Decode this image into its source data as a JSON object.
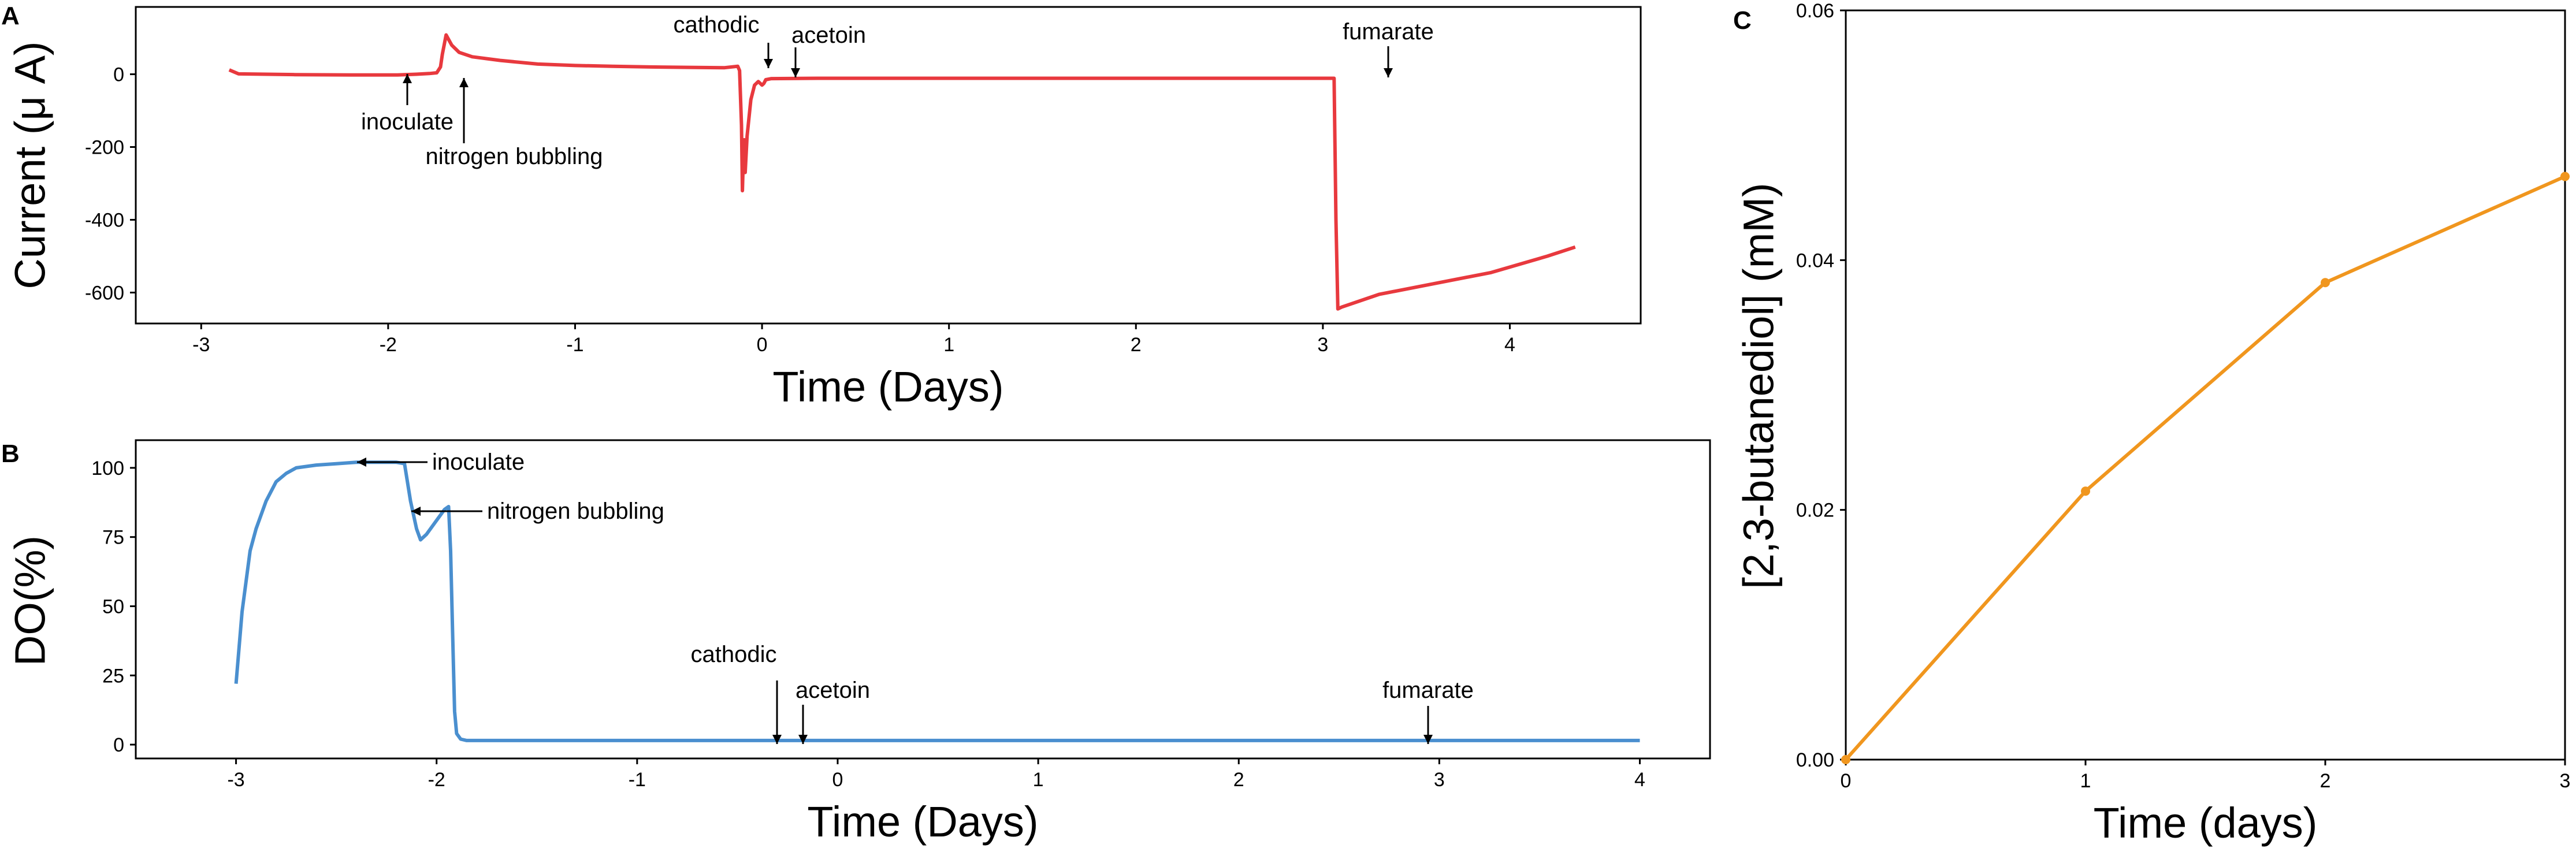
{
  "chart_data": [
    {
      "panel": "A",
      "type": "line",
      "xlabel": "Time (Days)",
      "ylabel": "Current (μ A)",
      "xlim": [
        -3.35,
        4.7
      ],
      "ylim": [
        -685,
        185
      ],
      "xticks": [
        -3,
        -2,
        -1,
        0,
        1,
        2,
        3,
        4
      ],
      "yticks": [
        0,
        -200,
        -400,
        -600
      ],
      "grid": false,
      "color": "#e8393e",
      "series": [
        {
          "x": [
            -2.85,
            -2.8,
            -2.5,
            -2.2,
            -1.95,
            -1.85,
            -1.78,
            -1.74,
            -1.72,
            -1.71,
            -1.69,
            -1.66,
            -1.62,
            -1.55,
            -1.4,
            -1.2,
            -1.0,
            -0.8,
            -0.6,
            -0.4,
            -0.2,
            -0.13,
            -0.12,
            -0.11,
            -0.105,
            -0.1,
            -0.095,
            -0.09,
            -0.08,
            -0.06,
            -0.04,
            -0.02,
            0.0,
            0.01,
            0.02,
            0.05,
            0.3,
            1.0,
            2.0,
            3.0,
            3.06,
            3.07,
            3.08,
            3.1,
            3.3,
            3.6,
            3.9,
            4.2,
            4.35
          ],
          "y": [
            12,
            1,
            -1,
            -2,
            -2,
            0,
            2,
            4,
            20,
            55,
            108,
            80,
            60,
            48,
            38,
            28,
            24,
            22,
            20,
            19,
            18,
            22,
            10,
            -140,
            -320,
            -230,
            -180,
            -270,
            -170,
            -70,
            -30,
            -20,
            -30,
            -25,
            -15,
            -12,
            -11,
            -11,
            -11,
            -11,
            -11,
            -400,
            -645,
            -640,
            -605,
            -575,
            -545,
            -500,
            -475
          ]
        }
      ],
      "annotations": [
        {
          "label": "inoculate",
          "x": -1.95
        },
        {
          "label": "nitrogen bubbling",
          "x": -1.68
        },
        {
          "label": "cathodic",
          "x": -0.12
        },
        {
          "label": "acetoin",
          "x": 0.02
        },
        {
          "label": "fumarate",
          "x": 3.02
        }
      ]
    },
    {
      "panel": "B",
      "type": "line",
      "xlabel": "Time (Days)",
      "ylabel": "DO(%)",
      "xlim": [
        -3.5,
        4.35
      ],
      "ylim": [
        -5,
        110
      ],
      "xticks": [
        -3,
        -2,
        -1,
        0,
        1,
        2,
        3,
        4
      ],
      "yticks": [
        0,
        25,
        50,
        75,
        100
      ],
      "grid": false,
      "color": "#4a8fcf",
      "series": [
        {
          "x": [
            -3.0,
            -2.97,
            -2.93,
            -2.9,
            -2.85,
            -2.8,
            -2.75,
            -2.7,
            -2.6,
            -2.5,
            -2.4,
            -2.3,
            -2.2,
            -2.16,
            -2.13,
            -2.1,
            -2.08,
            -2.05,
            -2.0,
            -1.96,
            -1.94,
            -1.93,
            -1.92,
            -1.91,
            -1.9,
            -1.88,
            -1.85,
            -1.5,
            -1.0,
            0.0,
            1.0,
            2.0,
            3.0,
            4.0
          ],
          "y": [
            22,
            48,
            70,
            78,
            88,
            95,
            98,
            100,
            101,
            101.5,
            102,
            102,
            102,
            101.5,
            88,
            78,
            74,
            76,
            81,
            85,
            86,
            70,
            40,
            12,
            4,
            2,
            1.5,
            1.5,
            1.5,
            1.5,
            1.5,
            1.5,
            1.5,
            1.5
          ]
        }
      ],
      "annotations": [
        {
          "label": "inoculate",
          "x": -2.15,
          "y": 102
        },
        {
          "label": "nitrogen bubbling",
          "x": -1.92,
          "y": 86
        },
        {
          "label": "cathodic",
          "x": -0.12
        },
        {
          "label": "acetoin",
          "x": 0.0
        },
        {
          "label": "fumarate",
          "x": 3.0
        }
      ]
    },
    {
      "panel": "C",
      "type": "line",
      "xlabel": "Time (days)",
      "ylabel": "[2,3-butanediol] (mM)",
      "xlim": [
        0,
        3
      ],
      "ylim": [
        0,
        0.06
      ],
      "xticks": [
        0,
        1,
        2,
        3
      ],
      "xtick_labels": [
        "0",
        "1",
        "2",
        "3"
      ],
      "yticks": [
        0,
        0.02,
        0.04,
        0.06
      ],
      "ytick_labels": [
        "0.00",
        "0.02",
        "0.04",
        "0.06"
      ],
      "grid": false,
      "color": "#f0961e",
      "series": [
        {
          "x": [
            0,
            1,
            2,
            3
          ],
          "y": [
            0,
            0.0215,
            0.0382,
            0.0467
          ]
        }
      ]
    }
  ],
  "panels": {
    "a": {
      "letter": "A"
    },
    "b": {
      "letter": "B"
    },
    "c": {
      "letter": "C"
    }
  }
}
